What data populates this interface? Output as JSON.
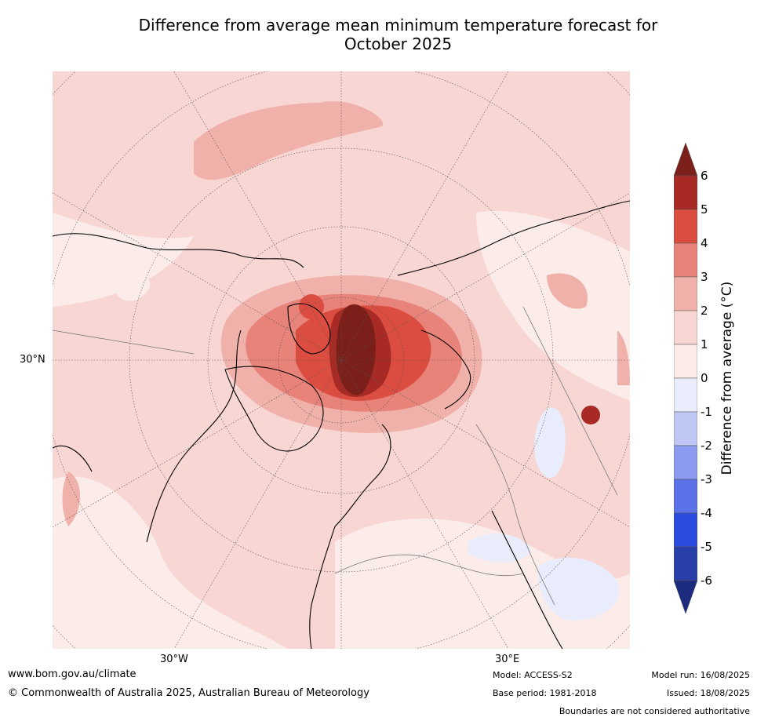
{
  "title_line1": "Difference from average mean minimum temperature forecast for",
  "title_line2": "October 2025",
  "lat_label": "30°N",
  "lon_labels": [
    "30°W",
    "30°E"
  ],
  "colorbar": {
    "label": "Difference from average (°C)",
    "ticks": [
      "6",
      "5",
      "4",
      "3",
      "2",
      "1",
      "0",
      "-1",
      "-2",
      "-3",
      "-4",
      "-5",
      "-6"
    ],
    "colors": [
      "#7b1f1a",
      "#a72a24",
      "#db4d40",
      "#e8837a",
      "#f0b1ab",
      "#f7d6d3",
      "#fbecea",
      "#e9ecfb",
      "#bfc7f5",
      "#8c9bef",
      "#5b71e8",
      "#2c4ce0",
      "#283ea8",
      "#1e2c80"
    ]
  },
  "footer": {
    "site": "www.bom.gov.au/climate",
    "copyright": "© Commonwealth of Australia 2025, Australian Bureau of Meteorology",
    "model": "Model: ACCESS-S2",
    "base_period": "Base period: 1981-2018",
    "model_run": "Model run: 16/08/2025",
    "issued": "Issued: 18/08/2025",
    "disclaimer": "Boundaries are not considered authoritative"
  }
}
